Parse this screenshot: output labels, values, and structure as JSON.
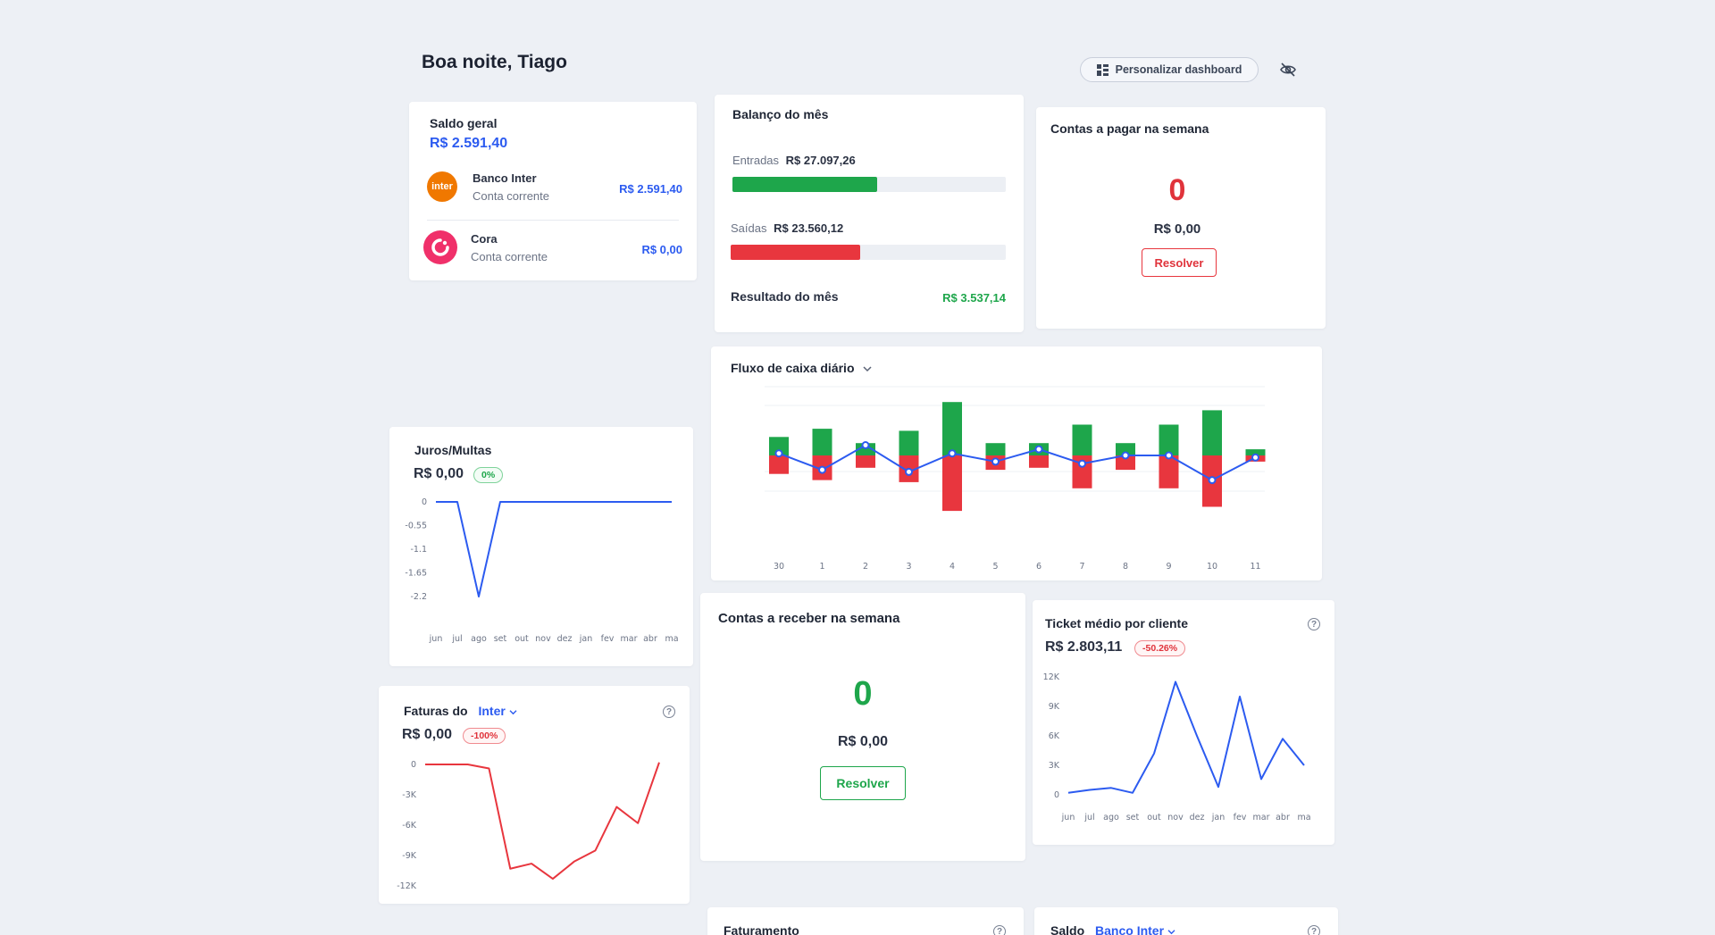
{
  "header": {
    "greeting": "Boa noite, Tiago",
    "customize_label": "Personalizar dashboard",
    "customize_icon": "dashboard-icon",
    "hide_icon": "eye-off-icon"
  },
  "saldo_geral": {
    "title": "Saldo geral",
    "total": "R$ 2.591,40",
    "accounts": [
      {
        "bank": "Banco Inter",
        "type": "Conta corrente",
        "value": "R$ 2.591,40",
        "logo_text": "inter",
        "logo_color": "#f07800"
      },
      {
        "bank": "Cora",
        "type": "Conta corrente",
        "value": "R$ 0,00",
        "logo_color": "#f0306a"
      }
    ]
  },
  "balanco": {
    "title": "Balanço do mês",
    "entradas_label": "Entradas",
    "entradas_value": "R$ 27.097,26",
    "entradas_fill": 0.53,
    "saidas_label": "Saídas",
    "saidas_value": "R$ 23.560,12",
    "saidas_fill": 0.47,
    "resultado_label": "Resultado do mês",
    "resultado_value": "R$ 3.537,14"
  },
  "contas_pagar": {
    "title": "Contas a pagar na semana",
    "count": "0",
    "value": "R$ 0,00",
    "button": "Resolver"
  },
  "fluxo": {
    "title": "Fluxo de caixa diário",
    "days": [
      "30",
      "1",
      "2",
      "3",
      "4",
      "5",
      "6",
      "7",
      "8",
      "9",
      "10",
      "11"
    ],
    "entradas": [
      0.45,
      0.65,
      0.3,
      0.6,
      1.3,
      0.3,
      0.3,
      0.75,
      0.3,
      0.75,
      1.1,
      0.15
    ],
    "saidas": [
      0.45,
      0.6,
      0.3,
      0.65,
      1.35,
      0.35,
      0.3,
      0.8,
      0.35,
      0.8,
      1.25,
      0.15
    ],
    "saldo": [
      0.05,
      -0.35,
      0.25,
      -0.4,
      0.05,
      -0.15,
      0.15,
      -0.2,
      0.0,
      0.0,
      -0.6,
      -0.05
    ]
  },
  "juros": {
    "title": "Juros/Multas",
    "value": "R$ 0,00",
    "badge": "0%",
    "y_ticks": [
      "0",
      "-0.55",
      "-1.1",
      "-1.65",
      "-2.2"
    ],
    "months": [
      "jun",
      "jul",
      "ago",
      "set",
      "out",
      "nov",
      "dez",
      "jan",
      "fev",
      "mar",
      "abr",
      "ma"
    ],
    "values": [
      0,
      0,
      -2.2,
      0,
      0,
      0,
      0,
      0,
      0,
      0,
      0,
      0
    ]
  },
  "contas_receber": {
    "title": "Contas a receber na semana",
    "count": "0",
    "value": "R$ 0,00",
    "button": "Resolver"
  },
  "ticket": {
    "title": "Ticket médio por cliente",
    "value": "R$ 2.803,11",
    "badge": "-50.26%",
    "y_ticks": [
      "12K",
      "9K",
      "6K",
      "3K",
      "0"
    ],
    "months": [
      "jun",
      "jul",
      "ago",
      "set",
      "out",
      "nov",
      "dez",
      "jan",
      "fev",
      "mar",
      "abr",
      "ma"
    ],
    "values": [
      200,
      500,
      700,
      200,
      4200,
      11500,
      6000,
      800,
      10000,
      1600,
      5700,
      3000
    ]
  },
  "faturas": {
    "title": "Faturas do",
    "bank": "Inter",
    "value": "R$ 0,00",
    "badge": "-100%",
    "y_ticks": [
      "0",
      "-3K",
      "-6K",
      "-9K",
      "-12K"
    ],
    "values": [
      0,
      0,
      0,
      -400,
      -10300,
      -9800,
      -11300,
      -9600,
      -8500,
      -4200,
      -5800,
      200
    ]
  },
  "faturamento": {
    "title": "Faturamento"
  },
  "saldo_card": {
    "title": "Saldo",
    "bank": "Banco Inter"
  },
  "colors": {
    "green": "#1ea64b",
    "red": "#e8363e",
    "blue": "#2c5bf0"
  }
}
